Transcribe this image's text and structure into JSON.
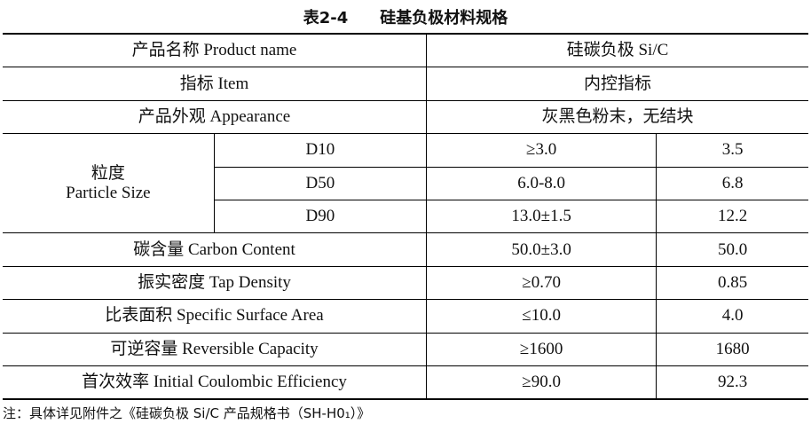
{
  "title": {
    "number": "表2-4",
    "text": "硅基负极材料规格"
  },
  "table": {
    "rows": [
      [
        "产品名称 Product name",
        "硅碳负极 Si/C"
      ],
      [
        "指标 Item",
        "内控指标"
      ],
      [
        "产品外观 Appearance",
        "灰黑色粉末，无结块"
      ],
      [
        "粒度",
        "Particle Size",
        "D10",
        "≥3.0",
        "3.5"
      ],
      [
        "D50",
        "6.0-8.0",
        "6.8"
      ],
      [
        "D90",
        "13.0±1.5",
        "12.2"
      ],
      [
        "碳含量 Carbon Content",
        "50.0±3.0",
        "50.0"
      ],
      [
        "振实密度 Tap Density",
        "≥0.70",
        "0.85"
      ],
      [
        "比表面积 Specific Surface Area",
        "≤10.0",
        "4.0"
      ],
      [
        "可逆容量 Reversible Capacity",
        "≥1600",
        "1680"
      ],
      [
        "首次效率 Initial Coulombic Efficiency",
        "≥90.0",
        "92.3"
      ]
    ]
  },
  "note": "注：具体详见附件之《硅碳负极 Si/C 产品规格书（SH-H0₁）》"
}
